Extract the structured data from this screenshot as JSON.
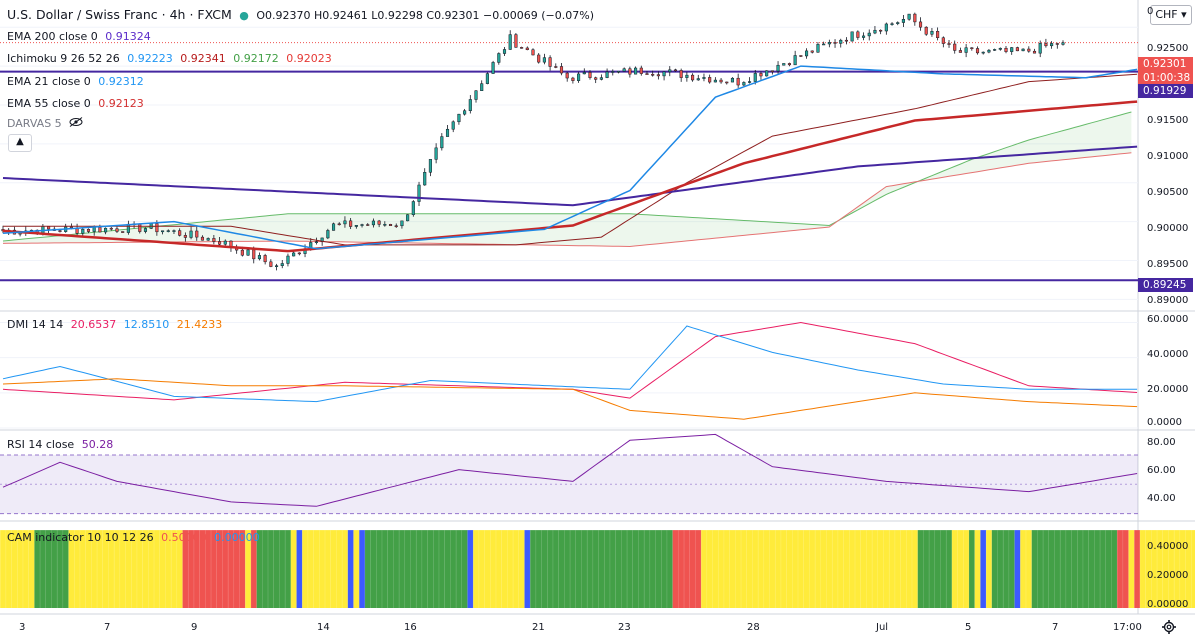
{
  "header": {
    "symbol": "U.S. Dollar / Swiss Franc · 4h · FXCM",
    "ohlc": "O0.92370 H0.92461 L0.92298 C0.92301 −0.00069 (−0.07%)",
    "currency": "CHF",
    "currency_chevron": "▾"
  },
  "indicators": {
    "ema200": {
      "label": "EMA 200 close 0",
      "value": "0.91324",
      "color": "#5b2cc9"
    },
    "ichimoku": {
      "label": "Ichimoku 9 26 52 26",
      "v1": "0.92223",
      "v2": "0.92341",
      "v3": "0.92172",
      "v4": "0.92023"
    },
    "ema21": {
      "label": "EMA 21 close 0",
      "value": "0.92312",
      "color": "#2196f3"
    },
    "ema55": {
      "label": "EMA 55 close 0",
      "value": "0.92123",
      "color": "#d32f2f"
    },
    "darvas": {
      "label": "DARVAS 5"
    }
  },
  "price_tags": {
    "current": "0.92301",
    "countdown": "01:00:38",
    "upper_line": "0.91929",
    "lower_line": "0.89245"
  },
  "dmi": {
    "label": "DMI 14 14",
    "v1": "20.6537",
    "v2": "12.8510",
    "v3": "21.4233"
  },
  "rsi": {
    "label": "RSI 14 close",
    "value": "50.28"
  },
  "cam": {
    "label": "CAM indicator 10 10 12 26",
    "v1": "0.50000",
    "v2": "0.00000"
  },
  "axis": {
    "price_ticks": [
      "0.92500",
      "0.92000",
      "0.91500",
      "0.91000",
      "0.90500",
      "0.90000",
      "0.89500",
      "0.89000"
    ],
    "price_top_partial": "0",
    "dmi_ticks": [
      "60.0000",
      "40.0000",
      "20.0000",
      "0.0000"
    ],
    "rsi_ticks": [
      "80.00",
      "60.00",
      "40.00"
    ],
    "cam_ticks": [
      "0.40000",
      "0.20000",
      "0.00000"
    ],
    "date_ticks": [
      "3",
      "7",
      "9",
      "14",
      "16",
      "21",
      "23",
      "28",
      "Jul",
      "5",
      "7",
      "17:00"
    ]
  },
  "chart_data": [
    {
      "type": "candlestick",
      "title": "U.S. Dollar / Swiss Franc · 4h · FXCM",
      "ylim": [
        0.8885,
        0.9285
      ],
      "horizontal_lines": [
        0.91929,
        0.89245
      ],
      "last_close": 0.92301,
      "segments": [
        {
          "n": 27,
          "end": 0.8992
        },
        {
          "n": 12,
          "end": 0.8975
        },
        {
          "n": 10,
          "end": 0.8942
        },
        {
          "n": 10,
          "end": 0.8995
        },
        {
          "n": 12,
          "end": 0.8998
        },
        {
          "n": 7,
          "end": 0.9105
        },
        {
          "n": 12,
          "end": 0.9235
        },
        {
          "n": 10,
          "end": 0.9185
        },
        {
          "n": 14,
          "end": 0.9195
        },
        {
          "n": 16,
          "end": 0.918
        },
        {
          "n": 18,
          "end": 0.9235
        },
        {
          "n": 12,
          "end": 0.9262
        },
        {
          "n": 8,
          "end": 0.9218
        },
        {
          "n": 12,
          "end": 0.9218
        },
        {
          "n": 7,
          "end": 0.9231
        }
      ],
      "ema200": [
        [
          0,
          0.9056
        ],
        [
          100,
          0.9021
        ],
        [
          150,
          0.9071
        ],
        [
          200,
          0.9097
        ],
        [
          275,
          0.9132
        ]
      ],
      "ema55": [
        [
          0,
          0.8988
        ],
        [
          50,
          0.8962
        ],
        [
          100,
          0.8995
        ],
        [
          130,
          0.9075
        ],
        [
          160,
          0.913
        ],
        [
          200,
          0.9155
        ],
        [
          235,
          0.9187
        ],
        [
          275,
          0.9212
        ]
      ],
      "ema21": [
        [
          0,
          0.8985
        ],
        [
          30,
          0.9
        ],
        [
          55,
          0.8965
        ],
        [
          95,
          0.899
        ],
        [
          110,
          0.904
        ],
        [
          125,
          0.916
        ],
        [
          140,
          0.92
        ],
        [
          165,
          0.919
        ],
        [
          190,
          0.9185
        ],
        [
          215,
          0.9215
        ],
        [
          245,
          0.924
        ],
        [
          260,
          0.9225
        ],
        [
          275,
          0.9225
        ]
      ],
      "kijun": [
        [
          0,
          0.8994
        ],
        [
          40,
          0.8994
        ],
        [
          60,
          0.897
        ],
        [
          90,
          0.897
        ],
        [
          105,
          0.898
        ],
        [
          120,
          0.905
        ],
        [
          135,
          0.911
        ],
        [
          160,
          0.9145
        ],
        [
          180,
          0.918
        ],
        [
          220,
          0.92
        ],
        [
          250,
          0.9235
        ],
        [
          275,
          0.9236
        ]
      ],
      "cloud_top": [
        [
          0,
          0.8975
        ],
        [
          50,
          0.901
        ],
        [
          110,
          0.901
        ],
        [
          145,
          0.8995
        ],
        [
          155,
          0.9035
        ],
        [
          170,
          0.908
        ],
        [
          180,
          0.9105
        ],
        [
          200,
          0.9145
        ],
        [
          230,
          0.9195
        ],
        [
          260,
          0.9225
        ],
        [
          285,
          0.924
        ]
      ],
      "cloud_bottom": [
        [
          0,
          0.8972
        ],
        [
          50,
          0.8975
        ],
        [
          110,
          0.8968
        ],
        [
          145,
          0.8993
        ],
        [
          155,
          0.9045
        ],
        [
          180,
          0.9075
        ],
        [
          200,
          0.909
        ],
        [
          230,
          0.91
        ],
        [
          245,
          0.911
        ],
        [
          255,
          0.916
        ],
        [
          270,
          0.92
        ],
        [
          285,
          0.9215
        ]
      ]
    },
    {
      "type": "line",
      "title": "DMI 14 14",
      "ylim": [
        0,
        62
      ],
      "series": [
        {
          "color": "#e91e63",
          "points": [
            [
              0,
              22
            ],
            [
              30,
              16
            ],
            [
              60,
              26
            ],
            [
              100,
              22
            ],
            [
              110,
              17
            ],
            [
              125,
              52
            ],
            [
              140,
              60
            ],
            [
              160,
              48
            ],
            [
              180,
              24
            ],
            [
              200,
              20
            ],
            [
              225,
              30
            ],
            [
              245,
              22
            ],
            [
              275,
              21
            ]
          ]
        },
        {
          "color": "#2196f3",
          "points": [
            [
              0,
              28
            ],
            [
              10,
              35
            ],
            [
              30,
              18
            ],
            [
              55,
              15
            ],
            [
              75,
              27
            ],
            [
              110,
              22
            ],
            [
              120,
              58
            ],
            [
              135,
              43
            ],
            [
              150,
              33
            ],
            [
              165,
              25
            ],
            [
              180,
              22
            ],
            [
              200,
              22
            ],
            [
              220,
              32
            ],
            [
              240,
              20
            ],
            [
              275,
              13
            ]
          ]
        },
        {
          "color": "#f57c00",
          "points": [
            [
              0,
              25
            ],
            [
              20,
              28
            ],
            [
              40,
              24
            ],
            [
              60,
              24
            ],
            [
              80,
              23
            ],
            [
              100,
              22
            ],
            [
              110,
              10
            ],
            [
              130,
              5
            ],
            [
              140,
              10
            ],
            [
              160,
              20
            ],
            [
              180,
              15
            ],
            [
              200,
              12
            ],
            [
              220,
              8
            ],
            [
              230,
              15
            ],
            [
              240,
              24
            ],
            [
              275,
              21
            ]
          ]
        }
      ]
    },
    {
      "type": "line",
      "title": "RSI 14 close",
      "ylim": [
        25,
        87
      ],
      "band": [
        30,
        70
      ],
      "midline": 50,
      "series": [
        {
          "color": "#7b1fa2",
          "points": [
            [
              0,
              48
            ],
            [
              10,
              65
            ],
            [
              20,
              52
            ],
            [
              40,
              38
            ],
            [
              55,
              35
            ],
            [
              70,
              50
            ],
            [
              80,
              60
            ],
            [
              100,
              52
            ],
            [
              110,
              80
            ],
            [
              125,
              84
            ],
            [
              135,
              62
            ],
            [
              155,
              52
            ],
            [
              180,
              45
            ],
            [
              200,
              58
            ],
            [
              225,
              70
            ],
            [
              235,
              45
            ],
            [
              250,
              48
            ],
            [
              265,
              58
            ],
            [
              275,
              50
            ]
          ]
        }
      ]
    },
    {
      "type": "bar",
      "title": "CAM indicator 10 10 12 26",
      "ylim": [
        0,
        0.52
      ],
      "bar_value": 0.5,
      "colors": {
        "Y": "#ffeb3b",
        "G": "#43a047",
        "R": "#ef5350",
        "B": "#3d5afe"
      },
      "pattern": [
        [
          "Y",
          6
        ],
        [
          "G",
          6
        ],
        [
          "Y",
          20
        ],
        [
          "R",
          11
        ],
        [
          "Y",
          1
        ],
        [
          "R",
          1
        ],
        [
          "G",
          6
        ],
        [
          "Y",
          1
        ],
        [
          "B",
          1
        ],
        [
          "Y",
          8
        ],
        [
          "B",
          1
        ],
        [
          "Y",
          1
        ],
        [
          "B",
          1
        ],
        [
          "G",
          18
        ],
        [
          "B",
          1
        ],
        [
          "Y",
          9
        ],
        [
          "B",
          1
        ],
        [
          "G",
          25
        ],
        [
          "R",
          5
        ],
        [
          "Y",
          38
        ],
        [
          "G",
          6
        ],
        [
          "Y",
          3
        ],
        [
          "G",
          1
        ],
        [
          "Y",
          1
        ],
        [
          "B",
          1
        ],
        [
          "Y",
          1
        ],
        [
          "G",
          4
        ],
        [
          "B",
          1
        ],
        [
          "Y",
          2
        ],
        [
          "G",
          15
        ],
        [
          "R",
          2
        ],
        [
          "Y",
          1
        ],
        [
          "R",
          1
        ],
        [
          "Y",
          24
        ],
        [
          "G",
          1
        ],
        [
          "B",
          8
        ],
        [
          "R",
          1
        ]
      ]
    }
  ]
}
